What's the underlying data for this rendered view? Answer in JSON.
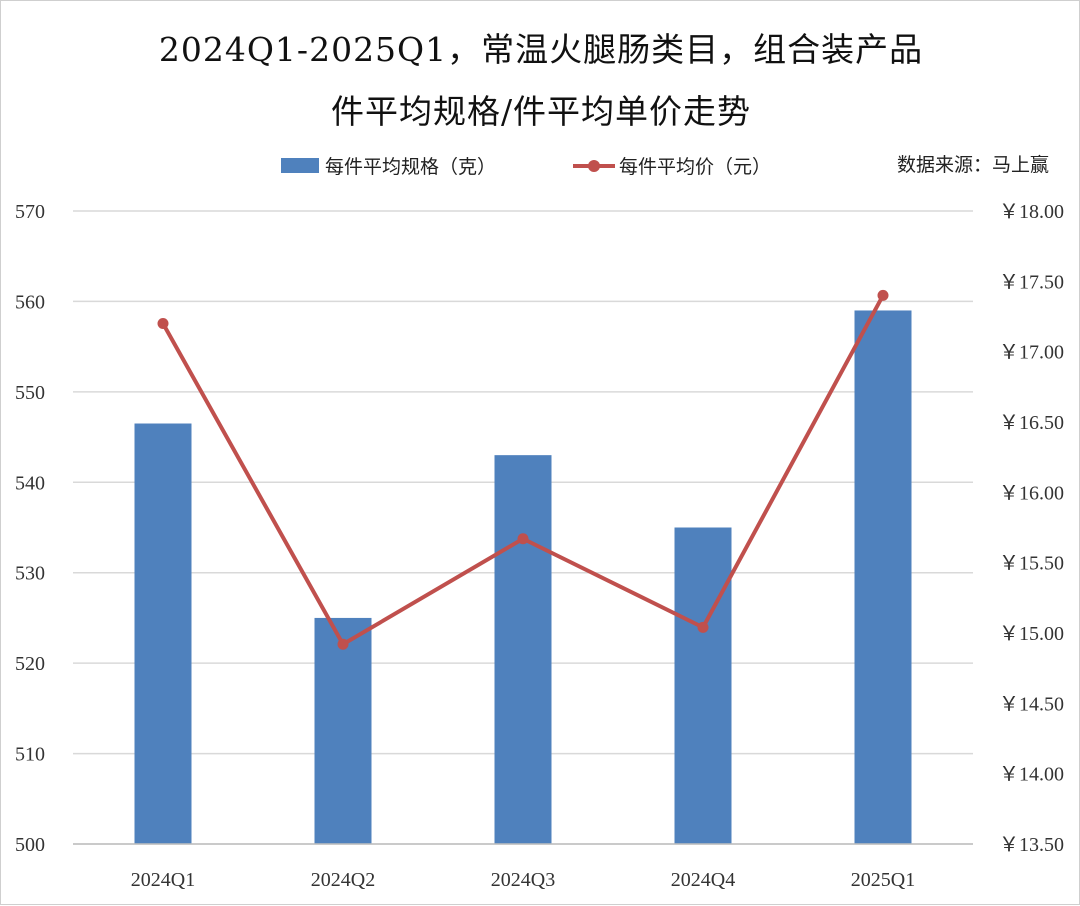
{
  "title": {
    "line1": "2024Q1-2025Q1，常温火腿肠类目，组合装产品",
    "line2": "件平均规格/件平均单价走势"
  },
  "legend": {
    "bar_label": "每件平均规格（克）",
    "line_label": "每件平均价（元）"
  },
  "source": "数据来源：马上赢",
  "colors": {
    "bar": "#4f81bd",
    "line": "#c0504d",
    "grid": "#d9d9d9"
  },
  "chart_data": {
    "type": "bar",
    "categories": [
      "2024Q1",
      "2024Q2",
      "2024Q3",
      "2024Q4",
      "2025Q1"
    ],
    "series": [
      {
        "name": "每件平均规格（克）",
        "type": "bar",
        "axis": "left",
        "values": [
          546.5,
          525,
          543,
          535,
          559
        ]
      },
      {
        "name": "每件平均价（元）",
        "type": "line",
        "axis": "right",
        "values": [
          17.2,
          14.92,
          15.67,
          15.04,
          17.4
        ]
      }
    ],
    "y_left": {
      "min": 500,
      "max": 570,
      "step": 10,
      "ticks": [
        "500",
        "510",
        "520",
        "530",
        "540",
        "550",
        "560",
        "570"
      ]
    },
    "y_right": {
      "min": 13.5,
      "max": 18.0,
      "step": 0.5,
      "ticks": [
        "￥13.50",
        "￥14.00",
        "￥14.50",
        "￥15.00",
        "￥15.50",
        "￥16.00",
        "￥16.50",
        "￥17.00",
        "￥17.50",
        "￥18.00"
      ]
    },
    "grid": true,
    "legend_position": "top"
  }
}
